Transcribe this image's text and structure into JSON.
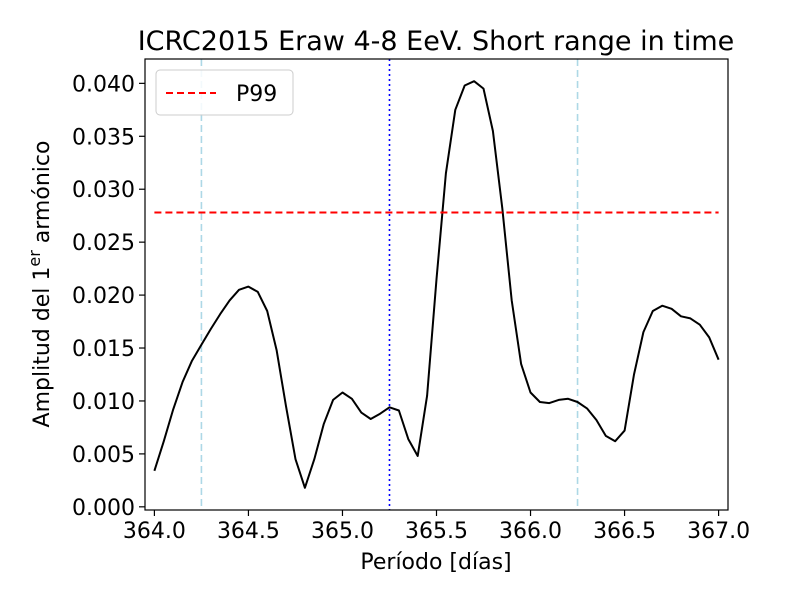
{
  "chart_data": {
    "type": "line",
    "title": "ICRC2015  Eraw 4-8 EeV. Short range in time",
    "xlabel": "Período [días]",
    "ylabel": {
      "prefix": "Amplitud del 1",
      "sup": "er",
      "suffix": " armónico"
    },
    "xlim": [
      363.95,
      367.05
    ],
    "ylim": [
      -0.0003,
      0.0423
    ],
    "xticks": [
      364.0,
      364.5,
      365.0,
      365.5,
      366.0,
      366.5,
      367.0
    ],
    "xtick_labels": [
      "364.0",
      "364.5",
      "365.0",
      "365.5",
      "366.0",
      "366.5",
      "367.0"
    ],
    "yticks": [
      0.0,
      0.005,
      0.01,
      0.015,
      0.02,
      0.025,
      0.03,
      0.035,
      0.04
    ],
    "ytick_labels": [
      "0.000",
      "0.005",
      "0.010",
      "0.015",
      "0.020",
      "0.025",
      "0.030",
      "0.035",
      "0.040"
    ],
    "grid": false,
    "legend": {
      "position": "top-left",
      "entries": [
        {
          "label": "P99",
          "color": "#ff0000",
          "style": "dashed"
        }
      ]
    },
    "series": [
      {
        "color": "#000000",
        "style": "solid",
        "x": [
          364.0,
          364.05,
          364.1,
          364.15,
          364.2,
          364.25,
          364.3,
          364.35,
          364.4,
          364.45,
          364.5,
          364.55,
          364.6,
          364.65,
          364.7,
          364.75,
          364.8,
          364.85,
          364.9,
          364.95,
          365.0,
          365.05,
          365.1,
          365.15,
          365.2,
          365.25,
          365.3,
          365.35,
          365.4,
          365.45,
          365.5,
          365.55,
          365.6,
          365.65,
          365.7,
          365.75,
          365.8,
          365.85,
          365.9,
          365.95,
          366.0,
          366.05,
          366.1,
          366.15,
          366.2,
          366.25,
          366.3,
          366.35,
          366.4,
          366.45,
          366.5,
          366.55,
          366.6,
          366.65,
          366.7,
          366.75,
          366.8,
          366.85,
          366.9,
          366.95,
          367.0
        ],
        "y": [
          0.0034,
          0.0062,
          0.0092,
          0.0118,
          0.0138,
          0.0153,
          0.0168,
          0.0182,
          0.0195,
          0.0205,
          0.0208,
          0.0203,
          0.0185,
          0.0148,
          0.0095,
          0.0045,
          0.0018,
          0.0045,
          0.0078,
          0.0101,
          0.0108,
          0.0102,
          0.0089,
          0.0083,
          0.0088,
          0.0094,
          0.0091,
          0.0064,
          0.0048,
          0.0105,
          0.0215,
          0.0315,
          0.0375,
          0.0398,
          0.0402,
          0.0395,
          0.0355,
          0.0282,
          0.0195,
          0.0135,
          0.0108,
          0.0099,
          0.0098,
          0.0101,
          0.0102,
          0.0099,
          0.0093,
          0.0082,
          0.0067,
          0.0062,
          0.0072,
          0.0125,
          0.0165,
          0.0185,
          0.019,
          0.0187,
          0.018,
          0.0178,
          0.0172,
          0.016,
          0.0139
        ]
      },
      {
        "name": "P99",
        "color": "#ff0000",
        "style": "dashed",
        "x": [
          364.0,
          367.0
        ],
        "y": [
          0.0278,
          0.0278
        ]
      }
    ],
    "vlines": [
      {
        "x": 364.25,
        "color": "#add8e6",
        "style": "dashed"
      },
      {
        "x": 365.25,
        "color": "#0000ff",
        "style": "dotted"
      },
      {
        "x": 366.25,
        "color": "#add8e6",
        "style": "dashed"
      }
    ]
  }
}
